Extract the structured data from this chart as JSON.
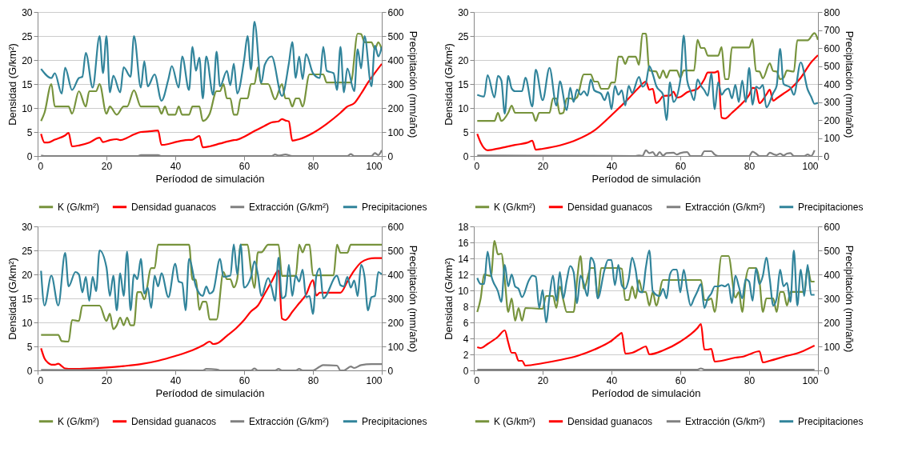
{
  "chart_data": [
    {
      "type": "line",
      "xlabel": "Períodod de simulación",
      "ylabel": "Densidad (G/km²)",
      "y2label": "Precipitación (mm/año)",
      "xlim": [
        0,
        100
      ],
      "xticks": [
        0,
        20,
        40,
        60,
        80,
        100
      ],
      "ylim": [
        0,
        30
      ],
      "yticks": [
        0,
        5,
        10,
        15,
        20,
        25,
        30
      ],
      "y2lim": [
        0,
        600
      ],
      "y2ticks": [
        0,
        100,
        200,
        300,
        400,
        500,
        600
      ],
      "grid": "y",
      "legend": "bottom",
      "series": [
        {
          "name": "K (G/km²)",
          "color": "#77933c",
          "x": [
            1,
            2,
            4,
            5,
            9,
            10,
            12,
            14,
            15,
            17,
            18,
            20,
            21,
            23,
            25,
            26,
            28,
            30,
            35,
            36,
            37,
            38,
            40,
            41,
            42,
            44,
            45,
            47,
            48,
            50,
            52,
            53,
            54,
            55,
            56,
            57,
            58,
            59,
            61,
            62,
            63,
            64,
            65,
            67,
            69,
            71,
            72,
            73,
            74,
            75,
            76,
            77,
            79,
            83,
            84,
            91,
            93,
            94,
            95,
            97,
            98,
            99,
            100
          ],
          "values": [
            7.3,
            9,
            15,
            10.3,
            10.3,
            8.8,
            13.5,
            10.3,
            13.5,
            13.5,
            15,
            8.8,
            10.3,
            8.6,
            10.3,
            10.3,
            13.7,
            10.3,
            10.3,
            8.8,
            10.3,
            8.6,
            8.6,
            10.3,
            8.6,
            8.6,
            10.3,
            10.3,
            7.3,
            8.8,
            13.5,
            13.5,
            15,
            12,
            12,
            8.6,
            8.6,
            12,
            12,
            15,
            15,
            18.5,
            15,
            15,
            11.8,
            15,
            12,
            12,
            10.3,
            12,
            12,
            10.3,
            17,
            17,
            15.3,
            15.3,
            25.5,
            25.4,
            23.7,
            23.7,
            22.3,
            23.7,
            22.2
          ]
        },
        {
          "name": "Densidad guanacos",
          "color": "#ff0000",
          "x": [
            1,
            2,
            3,
            5,
            8,
            9,
            10,
            12,
            15,
            18,
            19,
            21,
            23,
            24,
            26,
            28,
            30,
            32,
            35,
            36,
            38,
            40,
            43,
            45,
            47,
            48,
            50,
            53,
            57,
            58,
            60,
            63,
            66,
            68,
            70,
            71,
            72,
            73,
            74,
            76,
            80,
            84,
            88,
            90,
            92,
            94,
            96,
            98,
            100
          ],
          "values": [
            4.6,
            2.8,
            2.8,
            3.4,
            4.3,
            4.8,
            2,
            2.2,
            2.8,
            3.8,
            2.9,
            3.3,
            3.5,
            3.3,
            3.8,
            4.5,
            5.0,
            5.1,
            5.3,
            2.3,
            2.5,
            2.9,
            3.3,
            3.4,
            4.2,
            1.8,
            2,
            2.6,
            3.3,
            3.4,
            4,
            5.2,
            6.3,
            7,
            7.2,
            7.7,
            7.4,
            7.2,
            3.2,
            3.5,
            4.8,
            6.7,
            9,
            10.3,
            11,
            13,
            15.3,
            17.3,
            19.2
          ]
        },
        {
          "name": "Extracción (G/km²)",
          "color": "#808080",
          "x": [
            1,
            2,
            29,
            30,
            35,
            36,
            68,
            69,
            70,
            72,
            74,
            90,
            91,
            92,
            97,
            98,
            99,
            100
          ],
          "values": [
            0.1,
            0,
            0,
            0.2,
            0.2,
            0,
            0,
            0.3,
            0.1,
            0.3,
            0,
            0,
            0.4,
            0,
            0,
            0.6,
            0.2,
            1.2
          ]
        },
        {
          "name": "Precipitaciones",
          "color": "#31849b",
          "axis": "y2",
          "x": [
            1,
            4,
            5,
            7,
            8,
            10,
            12,
            13,
            14,
            16,
            18,
            19,
            20,
            21,
            22,
            24,
            25,
            27,
            28,
            30,
            31,
            32,
            34,
            36,
            38,
            39,
            41,
            42,
            44,
            45,
            46,
            47,
            48,
            49,
            51,
            52,
            53,
            55,
            56,
            57,
            58,
            60,
            61,
            62,
            63,
            65,
            66,
            68,
            71,
            73,
            74,
            75,
            76,
            77,
            78,
            80,
            82,
            83,
            84,
            86,
            87,
            88,
            89,
            90,
            92,
            93,
            94,
            95,
            97,
            98,
            99,
            100
          ],
          "values": [
            363,
            325,
            345,
            260,
            368,
            275,
            325,
            330,
            430,
            285,
            500,
            345,
            500,
            265,
            335,
            265,
            370,
            330,
            500,
            285,
            395,
            290,
            340,
            230,
            320,
            375,
            285,
            415,
            275,
            455,
            355,
            410,
            240,
            415,
            255,
            435,
            290,
            355,
            295,
            385,
            260,
            400,
            500,
            360,
            560,
            305,
            380,
            415,
            250,
            385,
            475,
            325,
            415,
            320,
            425,
            345,
            325,
            455,
            355,
            345,
            275,
            455,
            265,
            365,
            270,
            445,
            365,
            500,
            290,
            460,
            415,
            455
          ]
        }
      ]
    },
    {
      "type": "line",
      "xlabel": "Períodod de simulación",
      "ylabel": "Densidad (G/km²)",
      "y2label": "Precipitación (mm/año)",
      "xlim": [
        0,
        100
      ],
      "xticks": [
        0,
        20,
        40,
        60,
        80,
        100
      ],
      "ylim": [
        0,
        30
      ],
      "yticks": [
        0,
        5,
        10,
        15,
        20,
        25,
        30
      ],
      "y2lim": [
        0,
        800
      ],
      "y2ticks": [
        0,
        100,
        200,
        300,
        400,
        500,
        600,
        700,
        800
      ],
      "grid": "y",
      "legend": "bottom",
      "series": [
        {
          "name": "K (G/km²)",
          "color": "#77933c",
          "x": [
            1,
            6,
            7,
            8,
            10,
            11,
            12,
            17,
            18,
            19,
            22,
            23,
            24,
            25,
            26,
            27,
            28,
            29,
            30,
            32,
            34,
            35,
            36,
            37,
            39,
            40,
            41,
            42,
            43,
            44,
            45,
            47,
            48,
            49,
            50,
            51,
            53,
            54,
            55,
            56,
            57,
            59,
            60,
            61,
            64,
            65,
            66,
            67,
            68,
            71,
            72,
            73,
            74,
            75,
            80,
            81,
            82,
            83,
            84,
            86,
            87,
            88,
            89,
            90,
            91,
            93,
            94,
            97,
            99,
            100
          ],
          "values": [
            7.3,
            7.3,
            9,
            7.3,
            9,
            10.5,
            9,
            9,
            7.3,
            9,
            9,
            12,
            12,
            8.8,
            9,
            12,
            12,
            11.8,
            12.2,
            17,
            17,
            15.5,
            15.5,
            14,
            14,
            15.3,
            15.3,
            20.7,
            20.7,
            19.2,
            20.7,
            20.7,
            19,
            25.5,
            25.5,
            17.8,
            17.6,
            16.2,
            17.8,
            16.3,
            17.8,
            17.8,
            16.3,
            17.8,
            17.8,
            24.2,
            22.5,
            22.5,
            20.9,
            20.9,
            22.7,
            16,
            16,
            22.6,
            22.6,
            24.3,
            17.7,
            17.6,
            16.2,
            19.3,
            17.7,
            17.6,
            16,
            16.3,
            17.8,
            17.6,
            24.1,
            24.1,
            25.6,
            24.2
          ]
        },
        {
          "name": "Densidad guanacos",
          "color": "#ff0000",
          "x": [
            1,
            2,
            4,
            8,
            12,
            16,
            17,
            18,
            20,
            25,
            30,
            35,
            40,
            45,
            48,
            50,
            51,
            52,
            53,
            54,
            55,
            57,
            58,
            59,
            60,
            62,
            65,
            67,
            68,
            70,
            71,
            72,
            73,
            75,
            78,
            80,
            81,
            82,
            83,
            85,
            86,
            87,
            88,
            90,
            92,
            95,
            98,
            100
          ],
          "values": [
            4.6,
            2.8,
            1.2,
            1.7,
            2.3,
            2.9,
            3.2,
            1.3,
            1.5,
            2.2,
            3.4,
            5.3,
            8.5,
            12,
            14.3,
            15.5,
            13.8,
            14,
            11,
            11.6,
            12.5,
            12.6,
            13.4,
            12.2,
            12.3,
            13.3,
            14,
            16,
            17.4,
            17.4,
            17.7,
            8,
            7.8,
            9,
            11,
            12.7,
            14.2,
            14,
            11,
            12.8,
            13.8,
            11.5,
            12,
            13,
            14,
            16.3,
            19.5,
            21
          ]
        },
        {
          "name": "Extracción (G/km²)",
          "color": "#808080",
          "x": [
            1,
            47,
            48,
            49,
            50,
            51,
            52,
            53,
            54,
            55,
            56,
            58,
            59,
            60,
            62,
            63,
            66,
            67,
            69,
            70,
            71,
            80,
            81,
            82,
            83,
            85,
            86,
            87,
            88,
            89,
            90,
            91,
            92,
            93,
            96,
            97,
            98,
            99
          ],
          "values": [
            0.1,
            0,
            0.1,
            0,
            1.2,
            0.6,
            0.8,
            0,
            0.8,
            0.1,
            0.6,
            0.7,
            0.3,
            0.6,
            0.8,
            0,
            0,
            1,
            1,
            0.3,
            0,
            0,
            0.9,
            0.5,
            0,
            0,
            0.7,
            0.4,
            0.2,
            0.5,
            0.1,
            0.5,
            0.6,
            0,
            0,
            0.3,
            0,
            1.2
          ]
        },
        {
          "name": "Precipitaciones",
          "color": "#31849b",
          "axis": "y2",
          "x": [
            1,
            3,
            4,
            6,
            7,
            8,
            9,
            10,
            11,
            12,
            14,
            15,
            17,
            18,
            20,
            22,
            24,
            25,
            27,
            28,
            29,
            30,
            31,
            32,
            33,
            34,
            35,
            37,
            38,
            39,
            40,
            41,
            42,
            43,
            44,
            45,
            46,
            48,
            49,
            50,
            51,
            52,
            53,
            55,
            56,
            57,
            58,
            60,
            61,
            62,
            63,
            64,
            65,
            66,
            67,
            68,
            69,
            70,
            71,
            72,
            73,
            74,
            75,
            76,
            77,
            78,
            79,
            80,
            81,
            82,
            83,
            84,
            85,
            87,
            88,
            89,
            90,
            92,
            93,
            95,
            97,
            98,
            99,
            100
          ],
          "values": [
            340,
            330,
            450,
            325,
            445,
            420,
            235,
            445,
            375,
            360,
            360,
            435,
            275,
            480,
            310,
            490,
            280,
            415,
            255,
            380,
            300,
            370,
            340,
            360,
            335,
            425,
            365,
            345,
            310,
            355,
            260,
            390,
            340,
            365,
            280,
            390,
            350,
            440,
            385,
            405,
            500,
            455,
            390,
            340,
            200,
            410,
            300,
            420,
            670,
            420,
            360,
            310,
            425,
            390,
            365,
            335,
            460,
            260,
            410,
            340,
            365,
            375,
            320,
            395,
            300,
            420,
            300,
            490,
            285,
            385,
            375,
            395,
            270,
            350,
            390,
            595,
            400,
            380,
            340,
            520,
            370,
            330,
            290,
            295
          ]
        }
      ]
    },
    {
      "type": "line",
      "xlabel": "Períodod de simulación",
      "ylabel": "Densidad (G/km²)",
      "y2label": "Precipitación (mm/año)",
      "xlim": [
        0,
        100
      ],
      "xticks": [
        0,
        20,
        40,
        60,
        80,
        100
      ],
      "ylim": [
        0,
        30
      ],
      "yticks": [
        0,
        5,
        10,
        15,
        20,
        25,
        30
      ],
      "y2lim": [
        0,
        600
      ],
      "y2ticks": [
        0,
        100,
        200,
        300,
        400,
        500,
        600
      ],
      "grid": "y",
      "legend": "bottom",
      "series": [
        {
          "name": "K (G/km²)",
          "color": "#77933c",
          "x": [
            1,
            6,
            7,
            9,
            10,
            12,
            13,
            18,
            20,
            21,
            22,
            23,
            24,
            25,
            26,
            27,
            28,
            29,
            30,
            31,
            33,
            34,
            35,
            44,
            45,
            46,
            47,
            48,
            49,
            50,
            52,
            54,
            55,
            56,
            57,
            58,
            59,
            61,
            62,
            63,
            64,
            65,
            67,
            70,
            71,
            75,
            76,
            77,
            78,
            79,
            80,
            86,
            87,
            88,
            90,
            91,
            100
          ],
          "values": [
            7.4,
            7.4,
            6.1,
            6,
            10.5,
            10.3,
            13.5,
            13.5,
            10.3,
            11.8,
            8.6,
            9.4,
            11,
            9.4,
            11,
            9.4,
            9.4,
            16.3,
            16.3,
            14.8,
            21.3,
            21.3,
            26.2,
            26.2,
            18.9,
            18.9,
            12.6,
            14.3,
            14.3,
            10.6,
            10.6,
            20.5,
            19,
            19,
            17.3,
            19,
            26.2,
            26.2,
            21,
            17.2,
            24.6,
            24.6,
            26.2,
            26.2,
            19.7,
            19.7,
            26.2,
            24.6,
            26.2,
            26.2,
            19.8,
            19.8,
            26.2,
            24.5,
            24.5,
            26.2,
            26.2
          ]
        },
        {
          "name": "Densidad guanacos",
          "color": "#ff0000",
          "x": [
            1,
            2,
            3,
            4,
            5,
            6,
            7,
            8,
            10,
            20,
            25,
            30,
            35,
            40,
            45,
            48,
            50,
            51,
            52,
            55,
            58,
            60,
            62,
            64,
            66,
            68,
            70,
            71,
            72,
            74,
            76,
            78,
            80,
            81,
            82,
            88,
            90,
            92,
            94,
            96,
            98,
            100
          ],
          "values": [
            4.6,
            2.5,
            1.6,
            1.2,
            1.2,
            1.4,
            0.9,
            0.4,
            0.3,
            0.6,
            0.9,
            1.3,
            2,
            3,
            4.2,
            5.2,
            6,
            5.5,
            5.6,
            7.2,
            9,
            10.5,
            12.3,
            13.5,
            16,
            18.5,
            20.8,
            10.8,
            10.5,
            12.2,
            14,
            15.8,
            18.8,
            15.6,
            16.2,
            16.2,
            18.5,
            20.8,
            22.5,
            23.2,
            23.4,
            23.4
          ]
        },
        {
          "name": "Extracción (G/km²)",
          "color": "#808080",
          "x": [
            1,
            48,
            49,
            52,
            53,
            62,
            63,
            64,
            69,
            70,
            71,
            75,
            76,
            77,
            80,
            82,
            83,
            87,
            88,
            89,
            91,
            92,
            94,
            97,
            100
          ],
          "values": [
            0.1,
            0,
            0.3,
            0.2,
            0,
            0,
            0.4,
            0,
            0,
            0.3,
            0,
            0,
            0.3,
            0,
            0,
            0.8,
            1.1,
            1,
            0,
            0,
            0.8,
            0.5,
            1.1,
            1.3,
            1.3
          ]
        },
        {
          "name": "Precipitaciones",
          "color": "#31849b",
          "axis": "y2",
          "x": [
            1,
            2,
            4,
            6,
            8,
            9,
            11,
            12,
            13,
            14,
            15,
            16,
            17,
            18,
            20,
            21,
            22,
            23,
            24,
            25,
            26,
            27,
            28,
            29,
            30,
            31,
            32,
            33,
            34,
            35,
            36,
            38,
            40,
            41,
            42,
            43,
            44,
            46,
            48,
            49,
            50,
            51,
            53,
            54,
            56,
            57,
            58,
            59,
            60,
            62,
            63,
            64,
            65,
            67,
            68,
            69,
            70,
            71,
            72,
            73,
            74,
            75,
            76,
            77,
            78,
            79,
            80,
            81,
            82,
            83,
            87,
            88,
            89,
            90,
            91,
            92,
            93,
            94,
            95,
            96,
            97,
            98,
            99,
            100
          ],
          "values": [
            415,
            270,
            395,
            270,
            490,
            350,
            410,
            400,
            325,
            390,
            290,
            390,
            330,
            500,
            430,
            310,
            395,
            250,
            405,
            310,
            495,
            250,
            400,
            380,
            465,
            320,
            345,
            260,
            395,
            350,
            405,
            305,
            445,
            370,
            365,
            250,
            465,
            350,
            310,
            350,
            320,
            330,
            465,
            390,
            395,
            525,
            400,
            525,
            345,
            390,
            455,
            400,
            310,
            385,
            345,
            290,
            470,
            300,
            310,
            440,
            310,
            395,
            370,
            420,
            305,
            310,
            235,
            395,
            425,
            300,
            395,
            355,
            350,
            390,
            345,
            375,
            310,
            440,
            390,
            250,
            305,
            310,
            410,
            400
          ]
        }
      ]
    },
    {
      "type": "line",
      "xlabel": "Períodod de simulación",
      "ylabel": "Densidad (G/km²)",
      "y2label": "Precipitación (mm/año)",
      "xlim": [
        0,
        100
      ],
      "xticks": [
        0,
        20,
        40,
        60,
        80,
        100
      ],
      "ylim": [
        0,
        18
      ],
      "yticks": [
        0,
        2,
        4,
        6,
        8,
        10,
        12,
        14,
        16,
        18
      ],
      "y2lim": [
        0,
        600
      ],
      "y2ticks": [
        0,
        100,
        200,
        300,
        400,
        500,
        600
      ],
      "grid": "y",
      "legend": "bottom",
      "series": [
        {
          "name": "K (G/km²)",
          "color": "#77933c",
          "x": [
            1,
            2,
            3,
            4,
            5,
            6,
            7,
            8,
            9,
            10,
            11,
            12,
            13,
            14,
            15,
            20,
            21,
            23,
            24,
            25,
            26,
            27,
            29,
            30,
            31,
            32,
            34,
            35,
            36,
            37,
            42,
            43,
            44,
            45,
            46,
            47,
            48,
            49,
            50,
            51,
            52,
            53,
            55,
            66,
            67,
            68,
            69,
            70,
            72,
            74,
            76,
            77,
            78,
            79,
            80,
            82,
            83,
            84,
            85,
            87,
            88,
            89,
            90,
            91,
            92,
            96,
            97,
            98,
            99
          ],
          "values": [
            7.3,
            9,
            12,
            11.9,
            11.8,
            16.2,
            14.5,
            14.6,
            11.3,
            7.3,
            9,
            6.2,
            7.8,
            6.2,
            7.8,
            7.7,
            9.3,
            9.3,
            7.8,
            10.5,
            8.8,
            7.3,
            7.3,
            11.3,
            14.3,
            10.2,
            12.8,
            12.8,
            9.1,
            12.8,
            12.8,
            12.7,
            8.8,
            8.8,
            10.5,
            9,
            11.3,
            9.8,
            9.8,
            8.1,
            9.8,
            8.1,
            11.3,
            11.3,
            8.8,
            8.8,
            9,
            7.3,
            14.3,
            14.3,
            9.1,
            9.8,
            7.3,
            11.3,
            12.8,
            12.8,
            11.2,
            7.3,
            9,
            9,
            7.3,
            9.8,
            9.8,
            8.1,
            9.8,
            9.8,
            12.8,
            11.1,
            11.1
          ]
        },
        {
          "name": "Densidad guanacos",
          "color": "#ff0000",
          "x": [
            1,
            2,
            4,
            7,
            9,
            10,
            11,
            12,
            13,
            14,
            15,
            20,
            25,
            30,
            35,
            40,
            42,
            43,
            44,
            46,
            48,
            50,
            51,
            55,
            60,
            65,
            66,
            67,
            68,
            69,
            70,
            72,
            76,
            78,
            80,
            83,
            84,
            86,
            90,
            95,
            99
          ],
          "values": [
            2.9,
            2.8,
            3.3,
            4.2,
            5,
            3.5,
            2.2,
            2.2,
            1.2,
            1.2,
            0.6,
            0.9,
            1.3,
            1.8,
            2.6,
            3.7,
            4.4,
            4.7,
            2.1,
            2.2,
            2.6,
            3,
            2,
            2.5,
            3.6,
            5.3,
            5.8,
            2.6,
            2.6,
            2.7,
            1.1,
            1.2,
            1.6,
            1.7,
            2,
            2.4,
            1,
            1.2,
            1.7,
            2.3,
            3.1
          ]
        },
        {
          "name": "Extracción (G/km²)",
          "color": "#808080",
          "x": [
            1,
            65,
            66,
            67,
            99
          ],
          "values": [
            0.1,
            0.1,
            0.25,
            0.1,
            0.1
          ]
        },
        {
          "name": "Precipitaciones",
          "color": "#31849b",
          "axis": "y2",
          "x": [
            1,
            2,
            3,
            4,
            5,
            7,
            8,
            9,
            10,
            11,
            12,
            13,
            14,
            16,
            17,
            18,
            19,
            20,
            21,
            22,
            23,
            24,
            25,
            26,
            27,
            28,
            29,
            30,
            31,
            32,
            33,
            34,
            35,
            36,
            38,
            39,
            40,
            41,
            42,
            43,
            44,
            45,
            46,
            47,
            48,
            49,
            50,
            51,
            52,
            54,
            55,
            56,
            57,
            58,
            59,
            60,
            61,
            62,
            63,
            64,
            65,
            66,
            67,
            68,
            69,
            70,
            71,
            72,
            73,
            74,
            75,
            76,
            77,
            78,
            79,
            80,
            81,
            82,
            83,
            84,
            85,
            86,
            87,
            88,
            89,
            90,
            91,
            92,
            93,
            94,
            95,
            96,
            97,
            98,
            99
          ],
          "values": [
            385,
            360,
            360,
            495,
            400,
            330,
            285,
            440,
            350,
            400,
            350,
            340,
            305,
            375,
            395,
            390,
            260,
            335,
            200,
            310,
            395,
            290,
            410,
            300,
            375,
            435,
            410,
            280,
            395,
            360,
            310,
            470,
            445,
            300,
            420,
            460,
            460,
            355,
            440,
            355,
            340,
            380,
            470,
            420,
            330,
            325,
            430,
            500,
            330,
            310,
            340,
            300,
            400,
            420,
            420,
            325,
            420,
            335,
            270,
            300,
            330,
            360,
            260,
            300,
            320,
            350,
            350,
            355,
            350,
            360,
            280,
            395,
            350,
            300,
            380,
            370,
            290,
            425,
            360,
            395,
            470,
            380,
            270,
            300,
            420,
            350,
            365,
            285,
            500,
            270,
            420,
            310,
            440,
            315,
            315
          ]
        }
      ]
    }
  ]
}
